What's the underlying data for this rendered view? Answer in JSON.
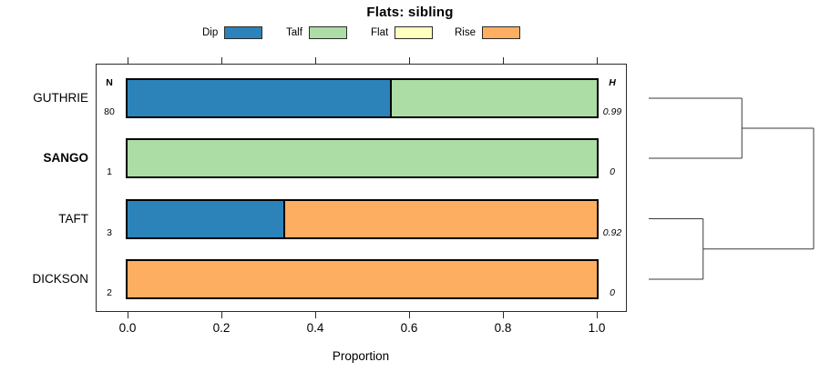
{
  "title": "Flats: sibling",
  "legend": {
    "items": [
      {
        "label": "Dip",
        "color": "#2B83BA"
      },
      {
        "label": "Talf",
        "color": "#ABDDA4"
      },
      {
        "label": "Flat",
        "color": "#FFFFBF"
      },
      {
        "label": "Rise",
        "color": "#FDAE61"
      }
    ]
  },
  "chart_data": {
    "type": "bar",
    "orientation": "horizontal",
    "stacked": true,
    "title": "Flats: sibling",
    "xlabel": "Proportion",
    "xlim": [
      0,
      1
    ],
    "xticks": [
      "0.0",
      "0.2",
      "0.4",
      "0.6",
      "0.8",
      "1.0"
    ],
    "grid": false,
    "legend_position": "top",
    "n_header": "N",
    "h_header": "H",
    "categories": [
      "GUTHRIE",
      "SANGO",
      "TAFT",
      "DICKSON"
    ],
    "rows": [
      {
        "label": "GUTHRIE",
        "bold": false,
        "n": "80",
        "h": "0.99",
        "segments": [
          {
            "name": "Dip",
            "value": 0.56
          },
          {
            "name": "Talf",
            "value": 0.44
          }
        ]
      },
      {
        "label": "SANGO",
        "bold": true,
        "n": "1",
        "h": "0",
        "segments": [
          {
            "name": "Talf",
            "value": 1.0
          }
        ]
      },
      {
        "label": "TAFT",
        "bold": false,
        "n": "3",
        "h": "0.92",
        "segments": [
          {
            "name": "Dip",
            "value": 0.333
          },
          {
            "name": "Rise",
            "value": 0.667
          }
        ]
      },
      {
        "label": "DICKSON",
        "bold": false,
        "n": "2",
        "h": "0",
        "segments": [
          {
            "name": "Rise",
            "value": 1.0
          }
        ]
      }
    ],
    "dendrogram": {
      "leaves": [
        "GUTHRIE",
        "SANGO",
        "TAFT",
        "DICKSON"
      ],
      "merges": [
        {
          "children": [
            0,
            1
          ],
          "height": 0.565
        },
        {
          "children": [
            2,
            3
          ],
          "height": 0.33
        },
        {
          "children": [
            "m0",
            "m1"
          ],
          "height": 1.0
        }
      ]
    }
  }
}
